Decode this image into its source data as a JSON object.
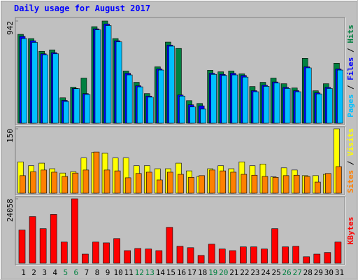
{
  "chart_data": [
    {
      "type": "bar",
      "title": "Daily usage for August 2017",
      "legend_separator": "/",
      "ylim": [
        0,
        942
      ],
      "yticks": [
        942
      ],
      "series": [
        {
          "name": "Hits",
          "color": "#008040",
          "values": [
            819,
            780,
            663,
            676,
            234,
            332,
            416,
            890,
            942,
            780,
            481,
            377,
            273,
            520,
            748,
            689,
            208,
            182,
            488,
            474,
            481,
            455,
            338,
            377,
            416,
            364,
            325,
            598,
            299,
            364,
            553
          ]
        },
        {
          "name": "Files",
          "color": "#0000ff",
          "values": [
            800,
            760,
            640,
            650,
            210,
            320,
            273,
            870,
            915,
            760,
            460,
            345,
            250,
            500,
            720,
            260,
            170,
            160,
            460,
            450,
            460,
            440,
            300,
            350,
            380,
            330,
            300,
            520,
            280,
            330,
            500
          ]
        },
        {
          "name": "Pages",
          "color": "#00c0ff",
          "values": [
            780,
            745,
            630,
            640,
            200,
            318,
            265,
            860,
            900,
            750,
            445,
            335,
            240,
            490,
            710,
            250,
            150,
            130,
            450,
            440,
            445,
            425,
            290,
            340,
            370,
            320,
            290,
            510,
            270,
            320,
            490
          ]
        }
      ]
    },
    {
      "type": "bar",
      "legend_separator": "/",
      "ylim": [
        0,
        150
      ],
      "yticks": [
        150
      ],
      "series": [
        {
          "name": "Visits",
          "color": "#ffff00",
          "values": [
            73,
            64,
            70,
            57,
            47,
            50,
            82,
            95,
            93,
            82,
            82,
            64,
            64,
            57,
            57,
            70,
            52,
            39,
            57,
            64,
            57,
            73,
            64,
            68,
            38,
            59,
            54,
            41,
            41,
            44,
            150
          ]
        },
        {
          "name": "Sites",
          "color": "#ff8000",
          "values": [
            41,
            50,
            54,
            49,
            39,
            47,
            54,
            96,
            54,
            52,
            36,
            46,
            49,
            31,
            49,
            44,
            37,
            41,
            54,
            52,
            49,
            44,
            42,
            39,
            37,
            41,
            42,
            39,
            26,
            46,
            62
          ]
        }
      ]
    },
    {
      "type": "bar",
      "ylim": [
        0,
        24058
      ],
      "yticks": [
        24058
      ],
      "categories": [
        "1",
        "2",
        "3",
        "4",
        "5",
        "6",
        "7",
        "8",
        "9",
        "10",
        "11",
        "12",
        "13",
        "14",
        "15",
        "16",
        "17",
        "18",
        "19",
        "20",
        "21",
        "22",
        "23",
        "24",
        "25",
        "26",
        "27",
        "28",
        "29",
        "30",
        "31"
      ],
      "category_label_colors": [
        "#000000",
        "#000000",
        "#000000",
        "#000000",
        "#008040",
        "#008040",
        "#000000",
        "#000000",
        "#000000",
        "#000000",
        "#000000",
        "#008040",
        "#008040",
        "#000000",
        "#000000",
        "#000000",
        "#000000",
        "#000000",
        "#008040",
        "#008040",
        "#000000",
        "#000000",
        "#000000",
        "#000000",
        "#000000",
        "#008040",
        "#008040",
        "#000000",
        "#000000",
        "#000000",
        "#000000"
      ],
      "series": [
        {
          "name": "KBytes",
          "color": "#ff0000",
          "values": [
            12400,
            17400,
            12900,
            18200,
            7900,
            24058,
            3400,
            7900,
            7600,
            9200,
            4700,
            5500,
            5300,
            4700,
            13400,
            6300,
            5800,
            2900,
            7100,
            5300,
            4700,
            6100,
            6100,
            5300,
            12900,
            6100,
            6300,
            2400,
            3400,
            4000,
            7900
          ]
        }
      ]
    }
  ]
}
